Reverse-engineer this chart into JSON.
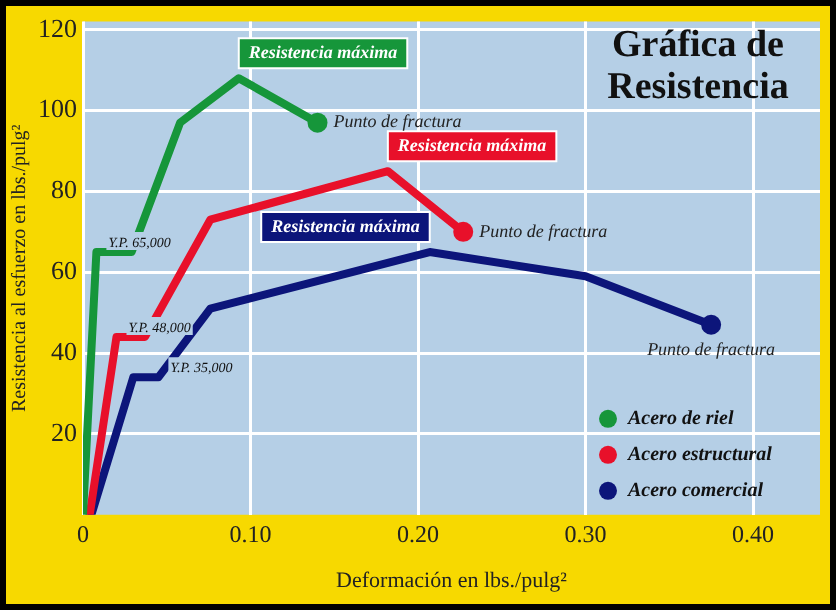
{
  "chart_data": {
    "type": "line",
    "title": "Gráfica de Resistencia",
    "xlabel": "Deformación en lbs./pulg²",
    "ylabel": "Resistencia al esfuerzo en lbs./pulg²",
    "series": [
      {
        "name": "Acero de riel",
        "color": "#16963a",
        "x": [
          0,
          0.008,
          0.029,
          0.058,
          0.093,
          0.14
        ],
        "values": [
          0,
          65,
          65,
          97,
          108,
          97
        ]
      },
      {
        "name": "Acero estructural",
        "color": "#e8102a",
        "x": [
          0.004,
          0.02,
          0.037,
          0.076,
          0.182,
          0.227
        ],
        "values": [
          0,
          44,
          44,
          73,
          85,
          70
        ]
      },
      {
        "name": "Acero comercial",
        "color": "#0c157a",
        "x": [
          0.005,
          0.03,
          0.045,
          0.076,
          0.207,
          0.3,
          0.375
        ],
        "values": [
          0,
          34,
          34,
          51,
          65,
          59,
          47
        ]
      }
    ],
    "xlim": [
      0,
      0.44
    ],
    "xticks": [
      0,
      {
        "value": 0.1,
        "label": "0.10"
      },
      {
        "value": 0.2,
        "label": "0.20"
      },
      {
        "value": 0.3,
        "label": "0.30"
      },
      {
        "value": 0.4,
        "label": "0.40"
      }
    ],
    "ylim": [
      0,
      122
    ],
    "yticks": [
      20,
      40,
      60,
      80,
      100,
      120
    ],
    "annotations": [
      {
        "text": "Resistencia máxima",
        "x": 0.093,
        "y": 108
      },
      {
        "text": "Resistencia máxima",
        "x": 0.182,
        "y": 85
      },
      {
        "text": "Resistencia máxima",
        "x": 0.207,
        "y": 65
      },
      {
        "text": "Punto de fractura",
        "x": 0.14,
        "y": 97
      },
      {
        "text": "Punto de fractura",
        "x": 0.227,
        "y": 70
      },
      {
        "text": "Punto de fractura",
        "x": 0.375,
        "y": 47
      },
      {
        "text": "Y.P. 65,000",
        "x": 0.008,
        "y": 65
      },
      {
        "text": "Y.P. 48,000",
        "x": 0.02,
        "y": 44
      },
      {
        "text": "Y.P. 35,000",
        "x": 0.045,
        "y": 34
      }
    ],
    "grid": true,
    "legend": "bottom right",
    "marker": "none",
    "line_style": "solid"
  }
}
